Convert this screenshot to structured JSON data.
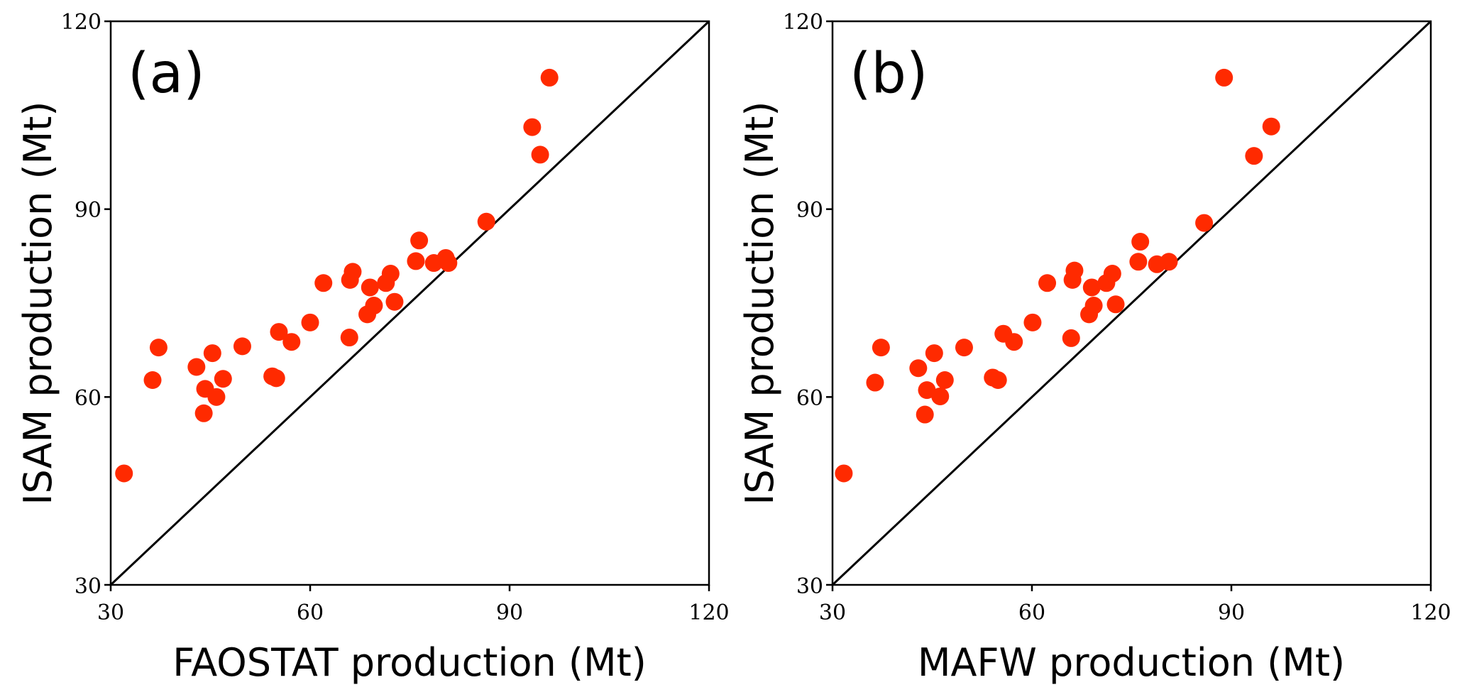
{
  "colors": {
    "point": "#ff2a00",
    "axis": "#000000"
  },
  "chart_data": [
    {
      "type": "scatter",
      "panel_label": "(a)",
      "xlabel": "FAOSTAT production (Mt)",
      "ylabel": "ISAM production (Mt)",
      "xlim": [
        30,
        120
      ],
      "ylim": [
        30,
        120
      ],
      "xticks": [
        "30",
        "60",
        "90",
        "120"
      ],
      "yticks": [
        "30",
        "60",
        "90",
        "120"
      ],
      "reference_line": "1:1",
      "grid": false,
      "points": [
        [
          32.0,
          47.8
        ],
        [
          36.3,
          62.7
        ],
        [
          37.2,
          67.9
        ],
        [
          42.9,
          64.8
        ],
        [
          44.0,
          57.4
        ],
        [
          44.2,
          61.3
        ],
        [
          45.3,
          67.0
        ],
        [
          45.9,
          60.0
        ],
        [
          46.9,
          62.9
        ],
        [
          49.8,
          68.1
        ],
        [
          54.3,
          63.3
        ],
        [
          54.9,
          63.0
        ],
        [
          55.3,
          70.4
        ],
        [
          57.2,
          68.8
        ],
        [
          60.0,
          71.9
        ],
        [
          62.0,
          78.2
        ],
        [
          65.9,
          69.5
        ],
        [
          66.0,
          78.7
        ],
        [
          66.4,
          80.0
        ],
        [
          68.6,
          73.2
        ],
        [
          69.0,
          77.5
        ],
        [
          69.6,
          74.6
        ],
        [
          71.4,
          78.2
        ],
        [
          72.1,
          79.7
        ],
        [
          72.7,
          75.2
        ],
        [
          75.9,
          81.7
        ],
        [
          76.4,
          85.0
        ],
        [
          78.6,
          81.4
        ],
        [
          80.4,
          82.2
        ],
        [
          80.8,
          81.4
        ],
        [
          86.5,
          88.0
        ],
        [
          93.4,
          103.1
        ],
        [
          94.6,
          98.7
        ],
        [
          96.0,
          111.0
        ]
      ]
    },
    {
      "type": "scatter",
      "panel_label": "(b)",
      "xlabel": "MAFW production (Mt)",
      "ylabel": "ISAM production (Mt)",
      "xlim": [
        30,
        120
      ],
      "ylim": [
        30,
        120
      ],
      "xticks": [
        "30",
        "60",
        "90",
        "120"
      ],
      "yticks": [
        "30",
        "60",
        "90",
        "120"
      ],
      "reference_line": "1:1",
      "grid": false,
      "points": [
        [
          31.7,
          47.8
        ],
        [
          36.4,
          62.3
        ],
        [
          37.3,
          67.9
        ],
        [
          42.9,
          64.6
        ],
        [
          43.9,
          57.2
        ],
        [
          44.2,
          61.1
        ],
        [
          45.3,
          67.0
        ],
        [
          46.2,
          60.1
        ],
        [
          46.9,
          62.7
        ],
        [
          49.8,
          67.9
        ],
        [
          54.1,
          63.1
        ],
        [
          54.9,
          62.7
        ],
        [
          55.7,
          70.1
        ],
        [
          57.3,
          68.8
        ],
        [
          60.1,
          71.9
        ],
        [
          62.3,
          78.2
        ],
        [
          65.9,
          69.4
        ],
        [
          66.1,
          78.7
        ],
        [
          66.4,
          80.2
        ],
        [
          68.6,
          73.2
        ],
        [
          69.0,
          77.5
        ],
        [
          69.3,
          74.6
        ],
        [
          71.2,
          78.2
        ],
        [
          72.1,
          79.7
        ],
        [
          72.6,
          74.8
        ],
        [
          76.0,
          81.6
        ],
        [
          76.3,
          84.8
        ],
        [
          78.8,
          81.2
        ],
        [
          80.6,
          81.6
        ],
        [
          85.9,
          87.8
        ],
        [
          88.9,
          111.0
        ],
        [
          93.4,
          98.5
        ],
        [
          96.0,
          103.2
        ]
      ]
    }
  ]
}
